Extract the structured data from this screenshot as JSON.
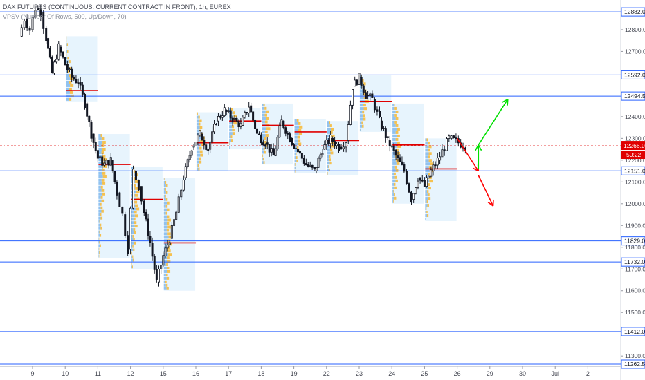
{
  "header": {
    "symbol_line": "DAX FUTURES (CONTINUOUS: CURRENT CONTRACT IN FRONT), 1h, EUREX",
    "indicator_line": "VPSV (Number Of Rows, 500, Up/Down, 70)"
  },
  "colors": {
    "up": "#53b987",
    "down": "#eb4d5c",
    "candle": "#131722",
    "level_line": "#2962ff",
    "poc": "#e00000",
    "vp_box": "#e3f2fd",
    "vp_orange": "#f7b731",
    "vp_blue": "#7cb5ec",
    "arrow_red": "#ff0000",
    "arrow_green": "#00e000",
    "axis_text": "#434651",
    "label_bg": "#ffffff",
    "label_border": "#2962ff"
  },
  "chart_data": {
    "type": "candlestick",
    "title": "",
    "ylim": [
      11262.5,
      12930
    ],
    "price_levels": [
      12882.0,
      12592.0,
      12494.5,
      12151.0,
      11829.0,
      11732.0,
      11412.0,
      11262.5
    ],
    "y_ticks": [
      12800.0,
      12700.0,
      12600.0,
      12400.0,
      12300.0,
      12200.0,
      12100.0,
      12000.0,
      11900.0,
      11800.0,
      11700.0,
      11600.0,
      11500.0,
      11400.0,
      11300.0
    ],
    "current_price": {
      "value": 12266.0,
      "label": "12266.0",
      "countdown": "50:22"
    },
    "x_ticks": [
      "9",
      "10",
      "11",
      "12",
      "15",
      "16",
      "17",
      "18",
      "19",
      "22",
      "23",
      "24",
      "25",
      "26",
      "29",
      "30",
      "Jul",
      "2"
    ],
    "price_path": [
      [
        "9",
        12770
      ],
      [
        "9",
        12850
      ],
      [
        "9",
        12800
      ],
      [
        "9",
        12900
      ],
      [
        "9",
        12880
      ],
      [
        "9",
        12760
      ],
      [
        "10",
        12600
      ],
      [
        "10",
        12720
      ],
      [
        "10",
        12640
      ],
      [
        "10",
        12580
      ],
      [
        "10",
        12560
      ],
      [
        "11",
        12460
      ],
      [
        "11",
        12320
      ],
      [
        "11",
        12210
      ],
      [
        "11",
        12180
      ],
      [
        "11",
        12200
      ],
      [
        "12",
        12050
      ],
      [
        "12",
        11950
      ],
      [
        "12",
        11790
      ],
      [
        "12",
        12150
      ],
      [
        "12",
        12080
      ],
      [
        "12",
        11960
      ],
      [
        "15",
        11820
      ],
      [
        "15",
        11640
      ],
      [
        "15",
        11760
      ],
      [
        "15",
        11840
      ],
      [
        "15",
        11960
      ],
      [
        "16",
        12120
      ],
      [
        "16",
        12260
      ],
      [
        "16",
        12320
      ],
      [
        "16",
        12250
      ],
      [
        "17",
        12380
      ],
      [
        "17",
        12430
      ],
      [
        "17",
        12390
      ],
      [
        "17",
        12360
      ],
      [
        "18",
        12450
      ],
      [
        "18",
        12320
      ],
      [
        "18",
        12280
      ],
      [
        "18",
        12220
      ],
      [
        "19",
        12380
      ],
      [
        "19",
        12300
      ],
      [
        "19",
        12240
      ],
      [
        "19",
        12180
      ],
      [
        "22",
        12150
      ],
      [
        "22",
        12250
      ],
      [
        "22",
        12300
      ],
      [
        "22",
        12260
      ],
      [
        "23",
        12290
      ],
      [
        "23",
        12540
      ],
      [
        "23",
        12580
      ],
      [
        "23",
        12500
      ],
      [
        "23",
        12480
      ],
      [
        "24",
        12380
      ],
      [
        "24",
        12290
      ],
      [
        "24",
        12220
      ],
      [
        "24",
        12150
      ],
      [
        "25",
        12020
      ],
      [
        "25",
        12120
      ],
      [
        "25",
        12080
      ],
      [
        "25",
        12150
      ],
      [
        "25",
        12200
      ],
      [
        "26",
        12300
      ],
      [
        "26",
        12266
      ]
    ],
    "volume_profiles": [
      {
        "from": "10",
        "to": "11",
        "high": 12770,
        "low": 12470,
        "poc": 12520
      },
      {
        "from": "11",
        "to": "12",
        "high": 12320,
        "low": 11750,
        "poc": 12180
      },
      {
        "from": "12",
        "to": "15",
        "high": 12170,
        "low": 11700,
        "poc": 12020
      },
      {
        "from": "15",
        "to": "16",
        "high": 12120,
        "low": 11600,
        "poc": 11820
      },
      {
        "from": "16",
        "to": "17",
        "high": 12420,
        "low": 12150,
        "poc": 12280
      },
      {
        "from": "17",
        "to": "18",
        "high": 12440,
        "low": 12250,
        "poc": 12380
      },
      {
        "from": "18",
        "to": "19",
        "high": 12460,
        "low": 12180,
        "poc": 12360
      },
      {
        "from": "19",
        "to": "22",
        "high": 12390,
        "low": 12140,
        "poc": 12330
      },
      {
        "from": "22",
        "to": "23",
        "high": 12380,
        "low": 12130,
        "poc": 12290
      },
      {
        "from": "23",
        "to": "24",
        "high": 12590,
        "low": 12330,
        "poc": 12470
      },
      {
        "from": "24",
        "to": "25",
        "high": 12460,
        "low": 12000,
        "poc": 12270
      },
      {
        "from": "25",
        "to": "26",
        "high": 12300,
        "low": 11920,
        "poc": 12160
      }
    ],
    "arrows": [
      {
        "color": "red",
        "from": [
          "26",
          12300
        ],
        "to": [
          "29",
          12150
        ]
      },
      {
        "color": "red",
        "from": [
          "29",
          12130
        ],
        "to": [
          "29",
          11990
        ]
      },
      {
        "color": "green",
        "from": [
          "29",
          12160
        ],
        "to": [
          "29",
          12270
        ]
      },
      {
        "color": "green",
        "from": [
          "29",
          12270
        ],
        "to": [
          "30",
          12480
        ]
      }
    ]
  }
}
